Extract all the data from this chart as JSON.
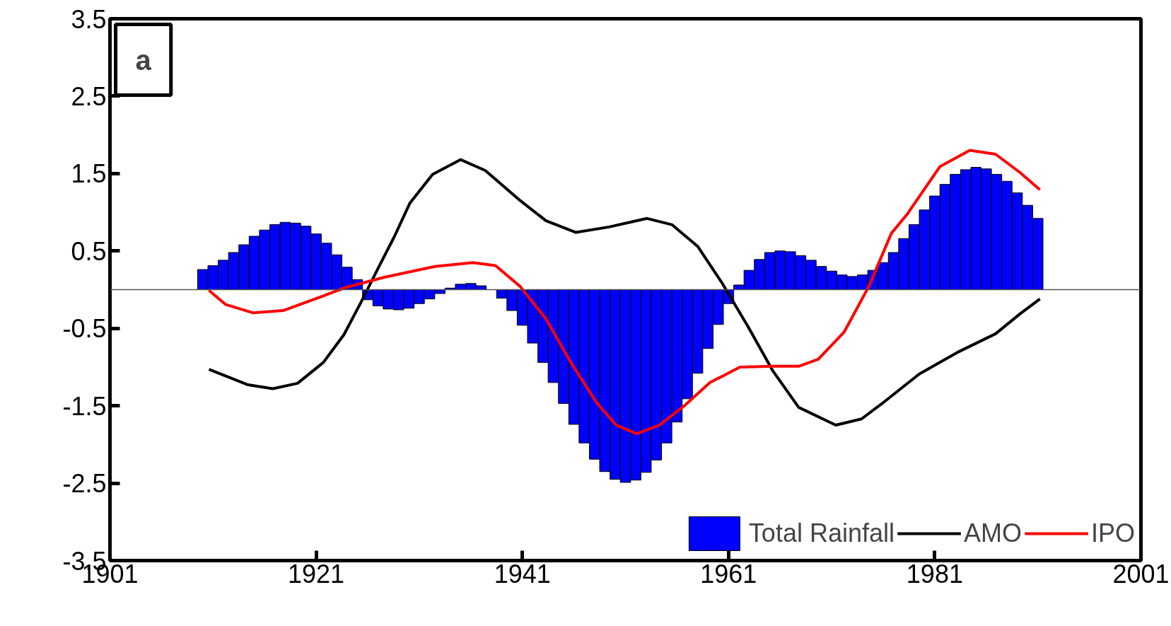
{
  "chart_data": {
    "type": "bar",
    "annotations": [
      "a"
    ],
    "x": [
      1910,
      1911,
      1912,
      1913,
      1914,
      1915,
      1916,
      1917,
      1918,
      1919,
      1920,
      1921,
      1922,
      1923,
      1924,
      1925,
      1926,
      1927,
      1928,
      1929,
      1930,
      1931,
      1932,
      1933,
      1934,
      1935,
      1936,
      1937,
      1938,
      1939,
      1940,
      1941,
      1942,
      1943,
      1944,
      1945,
      1946,
      1947,
      1948,
      1949,
      1950,
      1951,
      1952,
      1953,
      1954,
      1955,
      1956,
      1957,
      1958,
      1959,
      1960,
      1961,
      1962,
      1963,
      1964,
      1965,
      1966,
      1967,
      1968,
      1969,
      1970,
      1971,
      1972,
      1973,
      1974,
      1975,
      1976,
      1977,
      1978,
      1979,
      1980,
      1981,
      1982,
      1983,
      1984,
      1985,
      1986,
      1987,
      1988,
      1989,
      1990,
      1991
    ],
    "series": [
      {
        "name": "Total Rainfall",
        "color": "#0000ff",
        "values": [
          0.26,
          0.31,
          0.38,
          0.48,
          0.58,
          0.69,
          0.77,
          0.84,
          0.87,
          0.86,
          0.82,
          0.72,
          0.6,
          0.45,
          0.29,
          0.13,
          -0.13,
          -0.21,
          -0.25,
          -0.26,
          -0.24,
          -0.18,
          -0.12,
          -0.05,
          0.02,
          0.07,
          0.08,
          0.05,
          null,
          -0.11,
          -0.27,
          -0.46,
          -0.69,
          -0.94,
          -1.2,
          -1.47,
          -1.74,
          -1.98,
          -2.19,
          -2.35,
          -2.45,
          -2.49,
          -2.46,
          -2.36,
          -2.2,
          -1.98,
          -1.71,
          -1.41,
          -1.08,
          -0.76,
          -0.45,
          -0.18,
          0.06,
          0.25,
          0.39,
          0.48,
          0.5,
          0.49,
          0.44,
          0.38,
          0.3,
          0.24,
          0.19,
          0.17,
          0.19,
          0.25,
          0.35,
          0.48,
          0.66,
          0.84,
          1.03,
          1.21,
          1.36,
          1.49,
          1.55,
          1.58,
          1.56,
          1.49,
          1.4,
          1.25,
          1.09,
          0.92
        ]
      },
      {
        "name": "AMO",
        "type": "line",
        "color": "#000000",
        "x": [
          1910.6,
          1914.4,
          1916.8,
          1919.2,
          1921.7,
          1923.7,
          1925.4,
          1927.1,
          1928.6,
          1930.1,
          1932.3,
          1935.0,
          1937.4,
          1940.8,
          1943.3,
          1946.2,
          1949.4,
          1953.1,
          1955.5,
          1958.0,
          1960.4,
          1962.9,
          1965.3,
          1967.8,
          1971.4,
          1973.9,
          1975.8,
          1979.5,
          1983.2,
          1986.9,
          1989.3,
          1991.2
        ],
        "values": [
          -1.03,
          -1.23,
          -1.28,
          -1.21,
          -0.94,
          -0.58,
          -0.15,
          0.3,
          0.69,
          1.12,
          1.49,
          1.68,
          1.54,
          1.15,
          0.89,
          0.74,
          0.81,
          0.92,
          0.84,
          0.56,
          0.08,
          -0.48,
          -1.05,
          -1.52,
          -1.75,
          -1.67,
          -1.48,
          -1.09,
          -0.81,
          -0.57,
          -0.31,
          -0.12
        ]
      },
      {
        "name": "IPO",
        "type": "line",
        "color": "#ff0000",
        "x": [
          1910.6,
          1912.2,
          1914.9,
          1917.8,
          1921.5,
          1923.9,
          1927.6,
          1932.5,
          1936.2,
          1938.4,
          1940.8,
          1943.3,
          1945.7,
          1948.2,
          1950.1,
          1952.1,
          1954.3,
          1956.8,
          1959.2,
          1962.1,
          1965.3,
          1967.8,
          1969.7,
          1972.2,
          1974.6,
          1976.8,
          1978.3,
          1981.5,
          1984.4,
          1986.9,
          1989.3,
          1991.2
        ],
        "values": [
          -0.01,
          -0.19,
          -0.3,
          -0.27,
          -0.09,
          0.03,
          0.16,
          0.3,
          0.35,
          0.31,
          0.04,
          -0.38,
          -0.94,
          -1.46,
          -1.75,
          -1.86,
          -1.75,
          -1.49,
          -1.2,
          -1.0,
          -0.99,
          -0.99,
          -0.9,
          -0.55,
          0.04,
          0.73,
          0.97,
          1.59,
          1.8,
          1.75,
          1.51,
          1.29
        ]
      }
    ],
    "xlim": [
      1901,
      2001
    ],
    "xticks": [
      1901,
      1921,
      1941,
      1961,
      1981,
      2001
    ],
    "ylim": [
      -3.5,
      3.5
    ],
    "yticks": [
      -3.5,
      -2.5,
      -1.5,
      -0.5,
      0.5,
      1.5,
      2.5,
      3.5
    ],
    "ref_lines": [
      {
        "axis": "y",
        "value": 0,
        "color": "#555555"
      }
    ],
    "grid": false,
    "legend": "bottom right",
    "line_style": "solid"
  }
}
